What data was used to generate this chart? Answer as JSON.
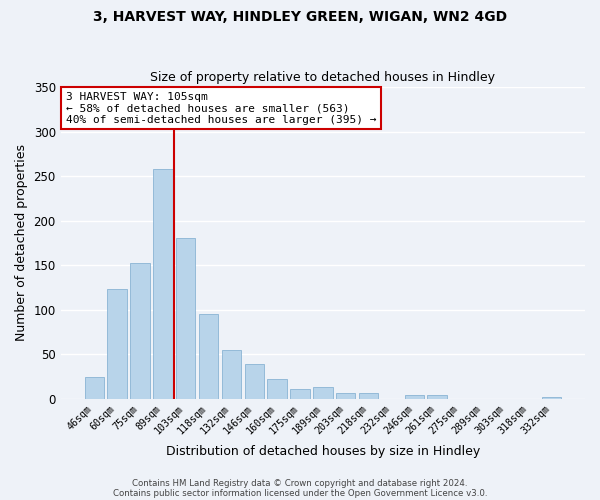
{
  "title1": "3, HARVEST WAY, HINDLEY GREEN, WIGAN, WN2 4GD",
  "title2": "Size of property relative to detached houses in Hindley",
  "xlabel": "Distribution of detached houses by size in Hindley",
  "ylabel": "Number of detached properties",
  "bar_color": "#b8d4ea",
  "bar_edge_color": "#8ab4d4",
  "background_color": "#eef2f8",
  "grid_color": "white",
  "categories": [
    "46sqm",
    "60sqm",
    "75sqm",
    "89sqm",
    "103sqm",
    "118sqm",
    "132sqm",
    "146sqm",
    "160sqm",
    "175sqm",
    "189sqm",
    "203sqm",
    "218sqm",
    "232sqm",
    "246sqm",
    "261sqm",
    "275sqm",
    "289sqm",
    "303sqm",
    "318sqm",
    "332sqm"
  ],
  "values": [
    24,
    123,
    152,
    258,
    180,
    95,
    55,
    39,
    22,
    11,
    13,
    6,
    6,
    0,
    4,
    4,
    0,
    0,
    0,
    0,
    2
  ],
  "vline_color": "#cc0000",
  "annotation_title": "3 HARVEST WAY: 105sqm",
  "annotation_line1": "← 58% of detached houses are smaller (563)",
  "annotation_line2": "40% of semi-detached houses are larger (395) →",
  "annotation_box_color": "white",
  "annotation_box_edge_color": "#cc0000",
  "ylim": [
    0,
    350
  ],
  "yticks": [
    0,
    50,
    100,
    150,
    200,
    250,
    300,
    350
  ],
  "footer1": "Contains HM Land Registry data © Crown copyright and database right 2024.",
  "footer2": "Contains public sector information licensed under the Open Government Licence v3.0."
}
